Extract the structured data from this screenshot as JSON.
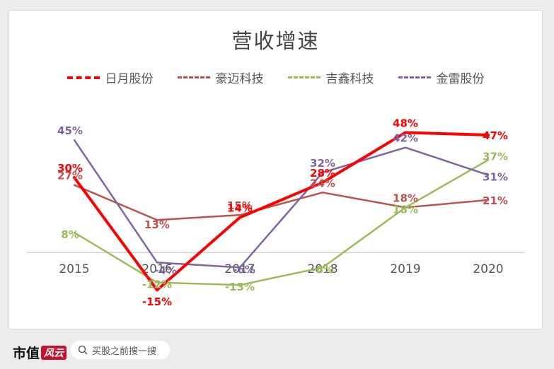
{
  "footer": {
    "brand": "市值",
    "brand_mark": "风云",
    "search_placeholder": "买股之前搜一搜"
  },
  "chart_data": {
    "type": "line",
    "title": "营收增速",
    "xlabel": "",
    "ylabel": "",
    "x": [
      "2015",
      "2016",
      "2017",
      "2018",
      "2019",
      "2020"
    ],
    "ylim": [
      -22,
      60
    ],
    "legend_position": "top",
    "series": [
      {
        "name": "日月股份",
        "values": [
          30,
          -15,
          14,
          28,
          48,
          47
        ],
        "labels": [
          "30%",
          "-15%",
          "14%",
          "28%",
          "48%",
          "47%"
        ],
        "color": "#ff0000",
        "width": 4,
        "bold": true
      },
      {
        "name": "豪迈科技",
        "values": [
          27,
          13,
          15,
          24,
          18,
          21
        ],
        "labels": [
          "27%",
          "13%",
          "15%",
          "24%",
          "18%",
          "21%"
        ],
        "color": "#c0504d",
        "width": 2.5
      },
      {
        "name": "吉鑫科技",
        "values": [
          8,
          -12,
          -13,
          -6,
          18,
          37
        ],
        "labels": [
          "8%",
          "-12%",
          "-13%",
          "-6%",
          "18%",
          "37%"
        ],
        "color": "#9bbb59",
        "width": 2.5
      },
      {
        "name": "金雷股份",
        "values": [
          45,
          -4,
          -6,
          32,
          42,
          31
        ],
        "labels": [
          "45%",
          "-4%",
          "-6%",
          "32%",
          "42%",
          "31%"
        ],
        "color": "#8064a2",
        "width": 2.5
      }
    ]
  }
}
